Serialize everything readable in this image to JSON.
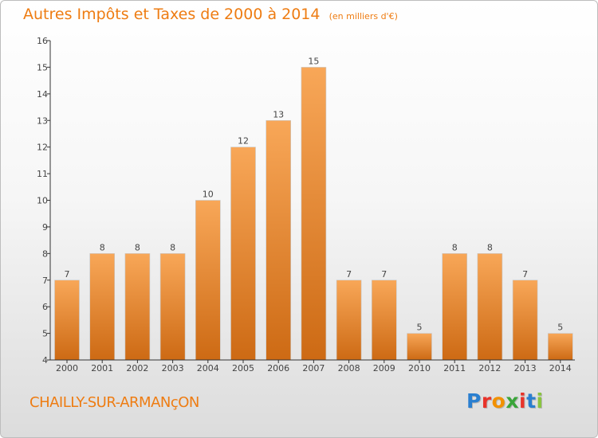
{
  "header": {
    "title": "Autres Impôts et Taxes de 2000 à 2014",
    "unit": "(en milliers d'€)"
  },
  "footer": {
    "commune": "CHAILLY-SUR-ARMANçON",
    "logo_letters": [
      "P",
      "r",
      "o",
      "x",
      "i",
      "t",
      "i"
    ],
    "logo_colors": [
      "#2a7fd0",
      "#e8332a",
      "#f29100",
      "#3aa53a",
      "#e8332a",
      "#2a7fd0",
      "#8ac43f"
    ],
    "logo_text": "Proxiti"
  },
  "colors": {
    "bar_top": "#f8a758",
    "bar_bottom": "#cd6a14",
    "accent": "#ee7c12",
    "axis": "#333333"
  },
  "chart_data": {
    "type": "bar",
    "categories": [
      "2000",
      "2001",
      "2002",
      "2003",
      "2004",
      "2005",
      "2006",
      "2007",
      "2008",
      "2009",
      "2010",
      "2011",
      "2012",
      "2013",
      "2014"
    ],
    "values": [
      7,
      8,
      8,
      8,
      10,
      12,
      13,
      15,
      7,
      7,
      5,
      8,
      8,
      7,
      5
    ],
    "ylim": [
      4,
      16
    ],
    "yticks": [
      4,
      5,
      6,
      7,
      8,
      9,
      10,
      11,
      12,
      13,
      14,
      15,
      16
    ],
    "grid": false,
    "legend": "none"
  }
}
